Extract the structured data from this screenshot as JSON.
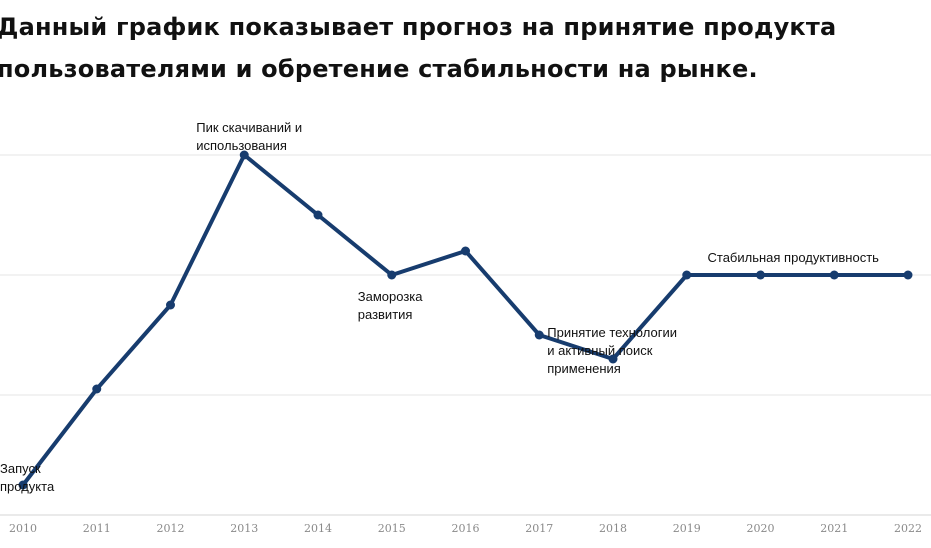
{
  "title": "Данный график показывает прогноз на принятие продукта пользователями и обретение стабильности на рынке.",
  "chart_data": {
    "type": "line",
    "x": [
      "2010",
      "2011",
      "2012",
      "2013",
      "2014",
      "2015",
      "2016",
      "2017",
      "2018",
      "2019",
      "2020",
      "2021",
      "2022"
    ],
    "values": [
      0.5,
      2.1,
      3.5,
      6.0,
      5.0,
      4.0,
      4.4,
      3.0,
      2.6,
      4.0,
      4.0,
      4.0,
      4.0
    ],
    "ylim": [
      0,
      6
    ],
    "grid": true,
    "line_color": "#173c6e",
    "annotations": [
      {
        "x": "2010",
        "lines": [
          "Запуск",
          "продукта"
        ]
      },
      {
        "x": "2013",
        "lines": [
          "Пик скачиваний и",
          "использования"
        ]
      },
      {
        "x": "2015",
        "lines": [
          "Заморозка",
          "развития"
        ]
      },
      {
        "x": "2017",
        "lines": [
          "Принятие технологии",
          "и активный поиск",
          "применения"
        ]
      },
      {
        "x": "2020",
        "lines": [
          "Стабильная продуктивность"
        ]
      }
    ]
  }
}
